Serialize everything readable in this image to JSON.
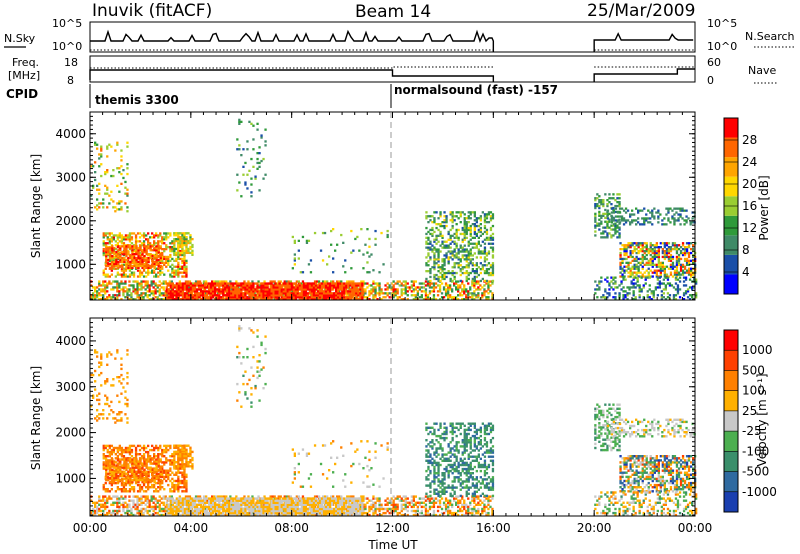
{
  "header": {
    "station": "Inuvik (fitACF)",
    "beam": "Beam 14",
    "date": "25/Mar/2009"
  },
  "top_panels": {
    "nsky_label": "N.Sky",
    "nsky_ticks": [
      "10^5",
      "10^0"
    ],
    "nsearch_label": "N.Search",
    "nsearch_ticks": [
      "10^5",
      "10^0"
    ],
    "freq_label": "Freq.",
    "freq_unit": "[MHz]",
    "freq_ticks": [
      "18",
      "8"
    ],
    "nave_label": "Nave",
    "nave_ticks": [
      "60",
      "0"
    ],
    "cpid_label": "CPID",
    "cpid_1": "themis 3300",
    "cpid_2": "normalsound (fast) -157"
  },
  "colors": {
    "power_scale": [
      "#0000ff",
      "#1a4fa8",
      "#3f8a67",
      "#2f9a3a",
      "#9acd32",
      "#ffd700",
      "#ffa500",
      "#ff6600",
      "#ff0000"
    ],
    "velocity_scale": [
      "#1a3fb0",
      "#2f6aa0",
      "#3a8f6b",
      "#4caf50",
      "#c8c8c8",
      "#ffb000",
      "#ff8000",
      "#ff4000",
      "#ff0000"
    ]
  },
  "chart_data": [
    {
      "type": "heatmap",
      "name": "power-panel",
      "title": "",
      "xlabel": "",
      "ylabel": "Slant Range [km]",
      "x_ticks": [
        "00:00",
        "04:00",
        "08:00",
        "12:00",
        "16:00",
        "20:00",
        "00:00"
      ],
      "y_ticks": [
        "1000",
        "2000",
        "3000",
        "4000"
      ],
      "xlim": [
        0,
        24
      ],
      "ylim": [
        180,
        4500
      ],
      "colorbar": {
        "label": "Power [dB]",
        "ticks": [
          "4",
          "8",
          "12",
          "16",
          "20",
          "24",
          "28"
        ]
      },
      "data_gap_hours": [
        16,
        20
      ]
    },
    {
      "type": "heatmap",
      "name": "velocity-panel",
      "title": "",
      "xlabel": "Time UT",
      "ylabel": "Slant Range [km]",
      "x_ticks": [
        "00:00",
        "04:00",
        "08:00",
        "12:00",
        "16:00",
        "20:00",
        "00:00"
      ],
      "y_ticks": [
        "1000",
        "2000",
        "3000",
        "4000"
      ],
      "xlim": [
        0,
        24
      ],
      "ylim": [
        180,
        4500
      ],
      "colorbar": {
        "label": "Velocity [m s⁻¹]",
        "ticks": [
          "1000",
          "500",
          "100",
          "25",
          "-25",
          "-100",
          "-500",
          "-1000"
        ]
      },
      "data_gap_hours": [
        16,
        20
      ]
    }
  ]
}
